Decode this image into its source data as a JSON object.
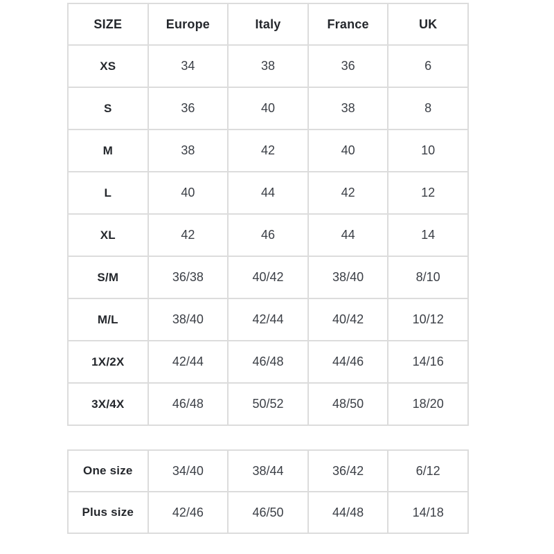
{
  "colors": {
    "background": "#ffffff",
    "border": "#dcdcdc",
    "header_text": "#24272c",
    "value_text": "#3b3f46"
  },
  "size_chart": {
    "headers": [
      "SIZE",
      "Europe",
      "Italy",
      "France",
      "UK"
    ],
    "rows": [
      [
        "XS",
        "34",
        "38",
        "36",
        "6"
      ],
      [
        "S",
        "36",
        "40",
        "38",
        "8"
      ],
      [
        "M",
        "38",
        "42",
        "40",
        "10"
      ],
      [
        "L",
        "40",
        "44",
        "42",
        "12"
      ],
      [
        "XL",
        "42",
        "46",
        "44",
        "14"
      ],
      [
        "S/M",
        "36/38",
        "40/42",
        "38/40",
        "8/10"
      ],
      [
        "M/L",
        "38/40",
        "42/44",
        "40/42",
        "10/12"
      ],
      [
        "1X/2X",
        "42/44",
        "46/48",
        "44/46",
        "14/16"
      ],
      [
        "3X/4X",
        "46/48",
        "50/52",
        "48/50",
        "18/20"
      ]
    ]
  },
  "special_size_chart": {
    "rows": [
      [
        "One size",
        "34/40",
        "38/44",
        "36/42",
        "6/12"
      ],
      [
        "Plus size",
        "42/46",
        "46/50",
        "44/48",
        "14/18"
      ]
    ]
  }
}
